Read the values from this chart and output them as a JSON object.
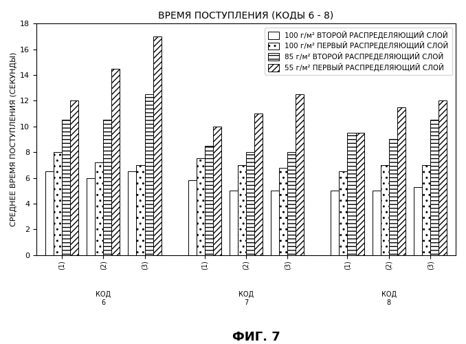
{
  "title": "ВРЕМЯ ПОСТУПЛЕНИЯ (КОДЫ 6 - 8)",
  "ylabel": "СРЕДНЕЕ ВРЕМЯ ПОСТУПЛЕНИЯ (СЕКУНДЫ)",
  "fig_label": "ФИГ. 7",
  "ylim": [
    0,
    18
  ],
  "yticks": [
    0,
    2,
    4,
    6,
    8,
    10,
    12,
    14,
    16,
    18
  ],
  "groups": [
    {
      "label": "КОД\n6",
      "sublabels": [
        "(1)",
        "(2)",
        "(3)"
      ]
    },
    {
      "label": "КОД\n7",
      "sublabels": [
        "(1)",
        "(2)",
        "(3)"
      ]
    },
    {
      "label": "КОД\n8",
      "sublabels": [
        "(1)",
        "(2)",
        "(3)"
      ]
    }
  ],
  "series": [
    {
      "name": "100 г/м² ВТОРОЙ РАСПРЕДЕЛЯЮЩИЙ СЛОЙ",
      "values": [
        6.5,
        6.0,
        6.5,
        5.8,
        5.0,
        5.0,
        5.0,
        5.0,
        5.3
      ],
      "hatch": "",
      "facecolor": "white",
      "edgecolor": "black"
    },
    {
      "name": "100 г/м² ПЕРВЫЙ РАСПРЕДЕЛЯЮЩИЙ СЛОЙ",
      "values": [
        8.0,
        7.2,
        7.0,
        7.5,
        7.0,
        6.8,
        6.5,
        7.0,
        7.0
      ],
      "hatch": "..",
      "facecolor": "white",
      "edgecolor": "black"
    },
    {
      "name": "85 г/м² ВТОРОЙ РАСПРЕДЕЛЯЮЩИЙ СЛОЙ",
      "values": [
        10.5,
        10.5,
        12.5,
        8.5,
        8.0,
        8.0,
        9.5,
        9.0,
        10.5
      ],
      "hatch": "---",
      "facecolor": "white",
      "edgecolor": "black"
    },
    {
      "name": "55 г/м² ПЕРВЫЙ РАСПРЕДЕЛЯЮЩИЙ СЛОЙ",
      "values": [
        12.0,
        14.5,
        17.0,
        10.0,
        11.0,
        12.5,
        9.5,
        11.5,
        12.0
      ],
      "hatch": "////",
      "facecolor": "white",
      "edgecolor": "black"
    }
  ],
  "bar_width": 0.18,
  "background_color": "white",
  "title_fontsize": 10,
  "label_fontsize": 8,
  "tick_fontsize": 8,
  "legend_fontsize": 7.5
}
